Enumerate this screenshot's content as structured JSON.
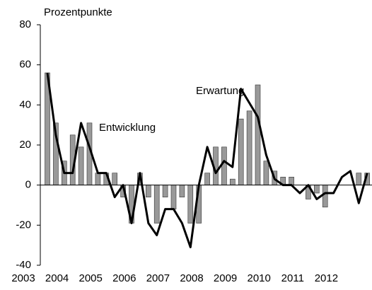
{
  "chart_data": {
    "type": "bar-line",
    "y_label": "Prozentpunkte",
    "categories": [
      "2003",
      null,
      null,
      null,
      "2004",
      null,
      null,
      null,
      "2005",
      null,
      null,
      null,
      "2006",
      null,
      null,
      null,
      "2007",
      null,
      null,
      null,
      "2008",
      null,
      null,
      null,
      "2009",
      null,
      null,
      null,
      "2010",
      null,
      null,
      null,
      "2011",
      null,
      null,
      null,
      "2012",
      null,
      null
    ],
    "series": [
      {
        "name": "Entwicklung",
        "type": "bar",
        "color": "#999999",
        "values": [
          56,
          31,
          12,
          25,
          19,
          31,
          6,
          6,
          6,
          -6,
          -19,
          6,
          -6,
          -19,
          -6,
          -12,
          -6,
          -19,
          -19,
          6,
          19,
          19,
          3,
          33,
          37,
          50,
          12,
          7,
          4,
          4,
          0,
          -7,
          -4,
          -11,
          0,
          0,
          0,
          6,
          6
        ]
      },
      {
        "name": "Erwartung",
        "type": "line",
        "color": "#000000",
        "values": [
          56,
          25,
          6,
          6,
          31,
          19,
          6,
          6,
          -6,
          0,
          -19,
          6,
          -19,
          -25,
          -12,
          -12,
          -19,
          -31,
          0,
          19,
          6,
          12,
          9,
          48,
          41,
          34,
          15,
          3,
          0,
          0,
          -4,
          0,
          -7,
          -4,
          -4,
          4,
          7,
          -9,
          6
        ]
      }
    ],
    "ylim": [
      -40,
      80
    ],
    "yticks": [
      -40,
      -20,
      0,
      20,
      40,
      60,
      80
    ]
  }
}
